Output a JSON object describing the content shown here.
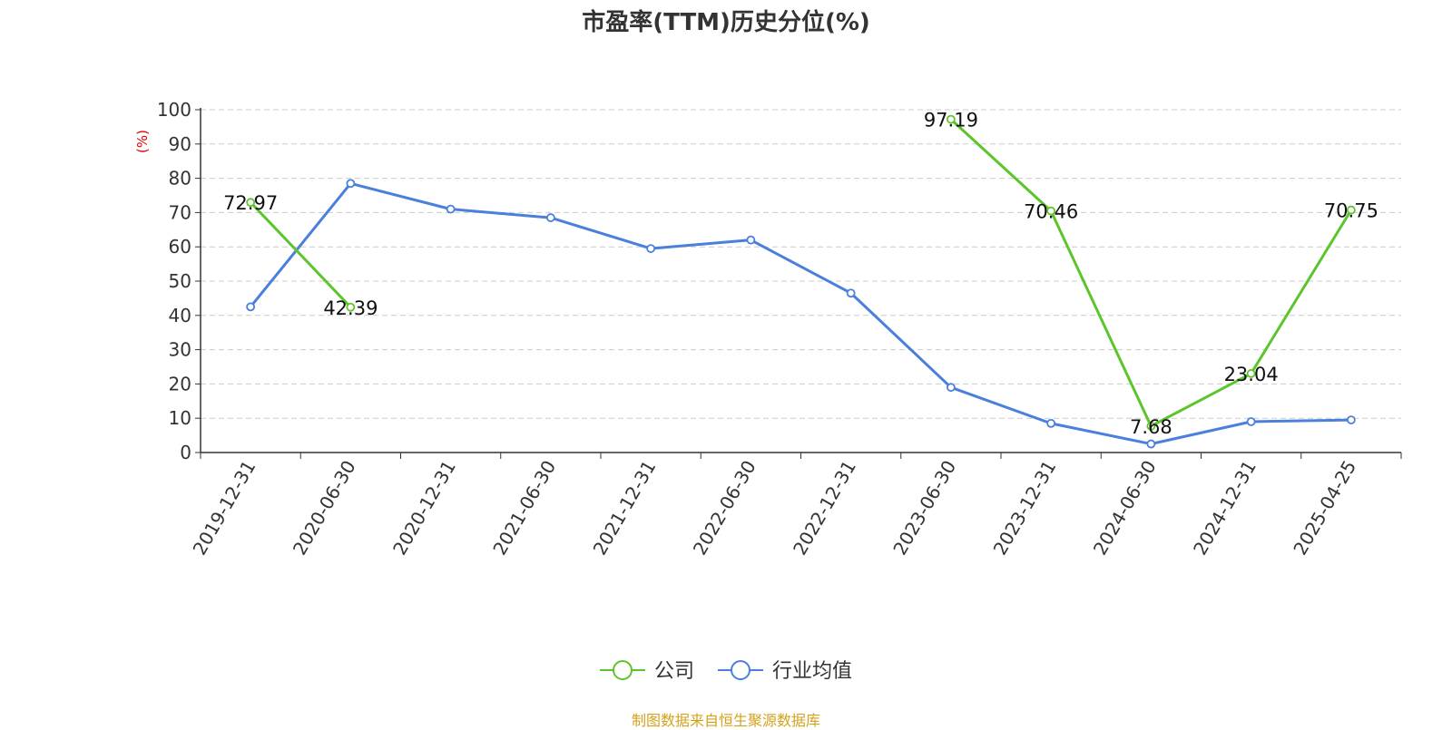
{
  "chart_data": {
    "type": "line",
    "title": "市盈率(TTM)历史分位(%)",
    "ylabel": "(%)",
    "ylim": [
      0,
      100
    ],
    "yticks": [
      0,
      10,
      20,
      30,
      40,
      50,
      60,
      70,
      80,
      90,
      100
    ],
    "grid": true,
    "legend_position": "bottom",
    "categories": [
      "2019-12-31",
      "2020-06-30",
      "2020-12-31",
      "2021-06-30",
      "2021-12-31",
      "2022-06-30",
      "2022-12-31",
      "2023-06-30",
      "2023-12-31",
      "2024-06-30",
      "2024-12-31",
      "2025-04-25"
    ],
    "series": [
      {
        "name": "公司",
        "color": "#5cc52b",
        "values": [
          72.97,
          42.39,
          null,
          null,
          null,
          null,
          null,
          97.19,
          70.46,
          7.68,
          23.04,
          70.75
        ],
        "labels": [
          "72.97",
          "42.39",
          "",
          "",
          "",
          "",
          "",
          "97.19",
          "70.46",
          "7.68",
          "23.04",
          "70.75"
        ]
      },
      {
        "name": "行业均值",
        "color": "#4a7fdc",
        "values": [
          42.5,
          78.5,
          71,
          68.5,
          59.5,
          62,
          46.5,
          19,
          8.5,
          2.5,
          9,
          9.5
        ]
      }
    ],
    "source": "制图数据来自恒生聚源数据库"
  }
}
